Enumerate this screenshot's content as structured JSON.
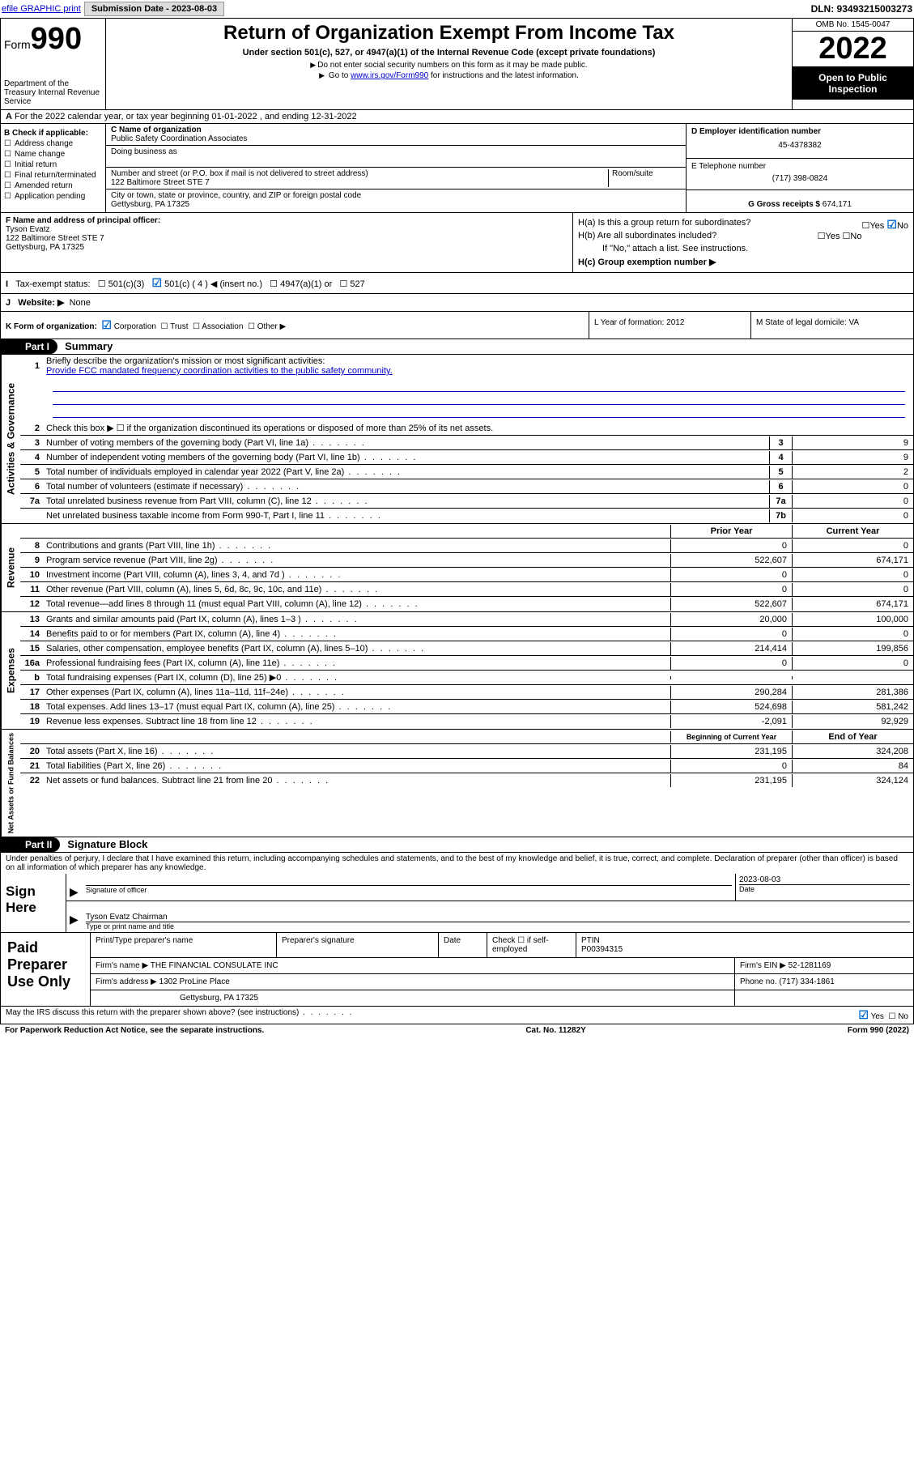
{
  "topbar": {
    "efile": "efile GRAPHIC print",
    "submission": "Submission Date - 2023-08-03",
    "dln": "DLN: 93493215003273"
  },
  "header": {
    "form_label": "Form",
    "form_no": "990",
    "dept": "Department of the Treasury Internal Revenue Service",
    "title": "Return of Organization Exempt From Income Tax",
    "sub": "Under section 501(c), 527, or 4947(a)(1) of the Internal Revenue Code (except private foundations)",
    "note1": "Do not enter social security numbers on this form as it may be made public.",
    "note2_pre": "Go to ",
    "note2_link": "www.irs.gov/Form990",
    "note2_post": " for instructions and the latest information.",
    "omb": "OMB No. 1545-0047",
    "year": "2022",
    "inspect": "Open to Public Inspection"
  },
  "rowA": "For the 2022 calendar year, or tax year beginning 01-01-2022    , and ending 12-31-2022",
  "colB": {
    "label": "B Check if applicable:",
    "items": [
      "Address change",
      "Name change",
      "Initial return",
      "Final return/terminated",
      "Amended return",
      "Application pending"
    ]
  },
  "colC": {
    "name_label": "C Name of organization",
    "name": "Public Safety Coordination Associates",
    "dba_label": "Doing business as",
    "addr_label": "Number and street (or P.O. box if mail is not delivered to street address)",
    "room_label": "Room/suite",
    "addr": "122 Baltimore Street STE 7",
    "city_label": "City or town, state or province, country, and ZIP or foreign postal code",
    "city": "Gettysburg, PA  17325"
  },
  "colDE": {
    "d_label": "D Employer identification number",
    "d_val": "45-4378382",
    "e_label": "E Telephone number",
    "e_val": "(717) 398-0824",
    "g_label": "G Gross receipts $",
    "g_val": "674,171"
  },
  "rowF": {
    "label": "F  Name and address of principal officer:",
    "name": "Tyson Evatz",
    "addr1": "122 Baltimore Street STE 7",
    "addr2": "Gettysburg, PA  17325"
  },
  "rowH": {
    "ha": "H(a)  Is this a group return for subordinates?",
    "hb": "H(b)  Are all subordinates included?",
    "hnote": "If \"No,\" attach a list. See instructions.",
    "hc": "H(c)  Group exemption number ▶",
    "yes": "Yes",
    "no": "No"
  },
  "rowI": {
    "label": "Tax-exempt status:",
    "opts": [
      "501(c)(3)",
      "501(c) ( 4 ) ◀ (insert no.)",
      "4947(a)(1) or",
      "527"
    ]
  },
  "rowJ": {
    "label": "Website: ▶",
    "val": "None"
  },
  "rowK": {
    "label": "K Form of organization:",
    "opts": [
      "Corporation",
      "Trust",
      "Association",
      "Other ▶"
    ]
  },
  "rowL": "L Year of formation: 2012",
  "rowM": "M State of legal domicile: VA",
  "part1": {
    "tag": "Part I",
    "title": "Summary"
  },
  "summary": {
    "s1": {
      "label": "Briefly describe the organization's mission or most significant activities:",
      "text": "Provide FCC mandated frequency coordination activities to the public safety community."
    },
    "s2": "Check this box ▶ ☐  if the organization discontinued its operations or disposed of more than 25% of its net assets.",
    "lines_gov": [
      {
        "n": "3",
        "d": "Number of voting members of the governing body (Part VI, line 1a)",
        "box": "3",
        "v": "9"
      },
      {
        "n": "4",
        "d": "Number of independent voting members of the governing body (Part VI, line 1b)",
        "box": "4",
        "v": "9"
      },
      {
        "n": "5",
        "d": "Total number of individuals employed in calendar year 2022 (Part V, line 2a)",
        "box": "5",
        "v": "2"
      },
      {
        "n": "6",
        "d": "Total number of volunteers (estimate if necessary)",
        "box": "6",
        "v": "0"
      },
      {
        "n": "7a",
        "d": "Total unrelated business revenue from Part VIII, column (C), line 12",
        "box": "7a",
        "v": "0"
      },
      {
        "n": "",
        "d": "Net unrelated business taxable income from Form 990-T, Part I, line 11",
        "box": "7b",
        "v": "0"
      }
    ],
    "hdr_prior": "Prior Year",
    "hdr_current": "Current Year",
    "lines_rev": [
      {
        "n": "8",
        "d": "Contributions and grants (Part VIII, line 1h)",
        "p": "0",
        "c": "0"
      },
      {
        "n": "9",
        "d": "Program service revenue (Part VIII, line 2g)",
        "p": "522,607",
        "c": "674,171"
      },
      {
        "n": "10",
        "d": "Investment income (Part VIII, column (A), lines 3, 4, and 7d )",
        "p": "0",
        "c": "0"
      },
      {
        "n": "11",
        "d": "Other revenue (Part VIII, column (A), lines 5, 6d, 8c, 9c, 10c, and 11e)",
        "p": "0",
        "c": "0"
      },
      {
        "n": "12",
        "d": "Total revenue—add lines 8 through 11 (must equal Part VIII, column (A), line 12)",
        "p": "522,607",
        "c": "674,171"
      }
    ],
    "lines_exp": [
      {
        "n": "13",
        "d": "Grants and similar amounts paid (Part IX, column (A), lines 1–3 )",
        "p": "20,000",
        "c": "100,000"
      },
      {
        "n": "14",
        "d": "Benefits paid to or for members (Part IX, column (A), line 4)",
        "p": "0",
        "c": "0"
      },
      {
        "n": "15",
        "d": "Salaries, other compensation, employee benefits (Part IX, column (A), lines 5–10)",
        "p": "214,414",
        "c": "199,856"
      },
      {
        "n": "16a",
        "d": "Professional fundraising fees (Part IX, column (A), line 11e)",
        "p": "0",
        "c": "0"
      },
      {
        "n": "b",
        "d": "Total fundraising expenses (Part IX, column (D), line 25) ▶0",
        "p": "",
        "c": ""
      },
      {
        "n": "17",
        "d": "Other expenses (Part IX, column (A), lines 11a–11d, 11f–24e)",
        "p": "290,284",
        "c": "281,386"
      },
      {
        "n": "18",
        "d": "Total expenses. Add lines 13–17 (must equal Part IX, column (A), line 25)",
        "p": "524,698",
        "c": "581,242"
      },
      {
        "n": "19",
        "d": "Revenue less expenses. Subtract line 18 from line 12",
        "p": "-2,091",
        "c": "92,929"
      }
    ],
    "hdr_begin": "Beginning of Current Year",
    "hdr_end": "End of Year",
    "lines_net": [
      {
        "n": "20",
        "d": "Total assets (Part X, line 16)",
        "p": "231,195",
        "c": "324,208"
      },
      {
        "n": "21",
        "d": "Total liabilities (Part X, line 26)",
        "p": "0",
        "c": "84"
      },
      {
        "n": "22",
        "d": "Net assets or fund balances. Subtract line 21 from line 20",
        "p": "231,195",
        "c": "324,124"
      }
    ],
    "vert_gov": "Activities & Governance",
    "vert_rev": "Revenue",
    "vert_exp": "Expenses",
    "vert_net": "Net Assets or Fund Balances"
  },
  "part2": {
    "tag": "Part II",
    "title": "Signature Block"
  },
  "sig": {
    "decl": "Under penalties of perjury, I declare that I have examined this return, including accompanying schedules and statements, and to the best of my knowledge and belief, it is true, correct, and complete. Declaration of preparer (other than officer) is based on all information of which preparer has any knowledge.",
    "sign_here": "Sign Here",
    "sig_officer": "Signature of officer",
    "date": "2023-08-03",
    "date_label": "Date",
    "name_title": "Tyson Evatz  Chairman",
    "type_label": "Type or print name and title"
  },
  "preparer": {
    "label": "Paid Preparer Use Only",
    "h1": "Print/Type preparer's name",
    "h2": "Preparer's signature",
    "h3": "Date",
    "h4_chk": "Check ☐ if self-employed",
    "h5": "PTIN",
    "ptin": "P00394315",
    "firm_name_label": "Firm's name    ▶",
    "firm_name": "THE FINANCIAL CONSULATE INC",
    "firm_ein_label": "Firm's EIN ▶",
    "firm_ein": "52-1281169",
    "firm_addr_label": "Firm's address ▶",
    "firm_addr1": "1302 ProLine Place",
    "firm_addr2": "Gettysburg, PA  17325",
    "phone_label": "Phone no.",
    "phone": "(717) 334-1861"
  },
  "footer": {
    "discuss": "May the IRS discuss this return with the preparer shown above? (see instructions)",
    "yes": "Yes",
    "no": "No",
    "paperwork": "For Paperwork Reduction Act Notice, see the separate instructions.",
    "cat": "Cat. No. 11282Y",
    "form": "Form 990 (2022)"
  }
}
